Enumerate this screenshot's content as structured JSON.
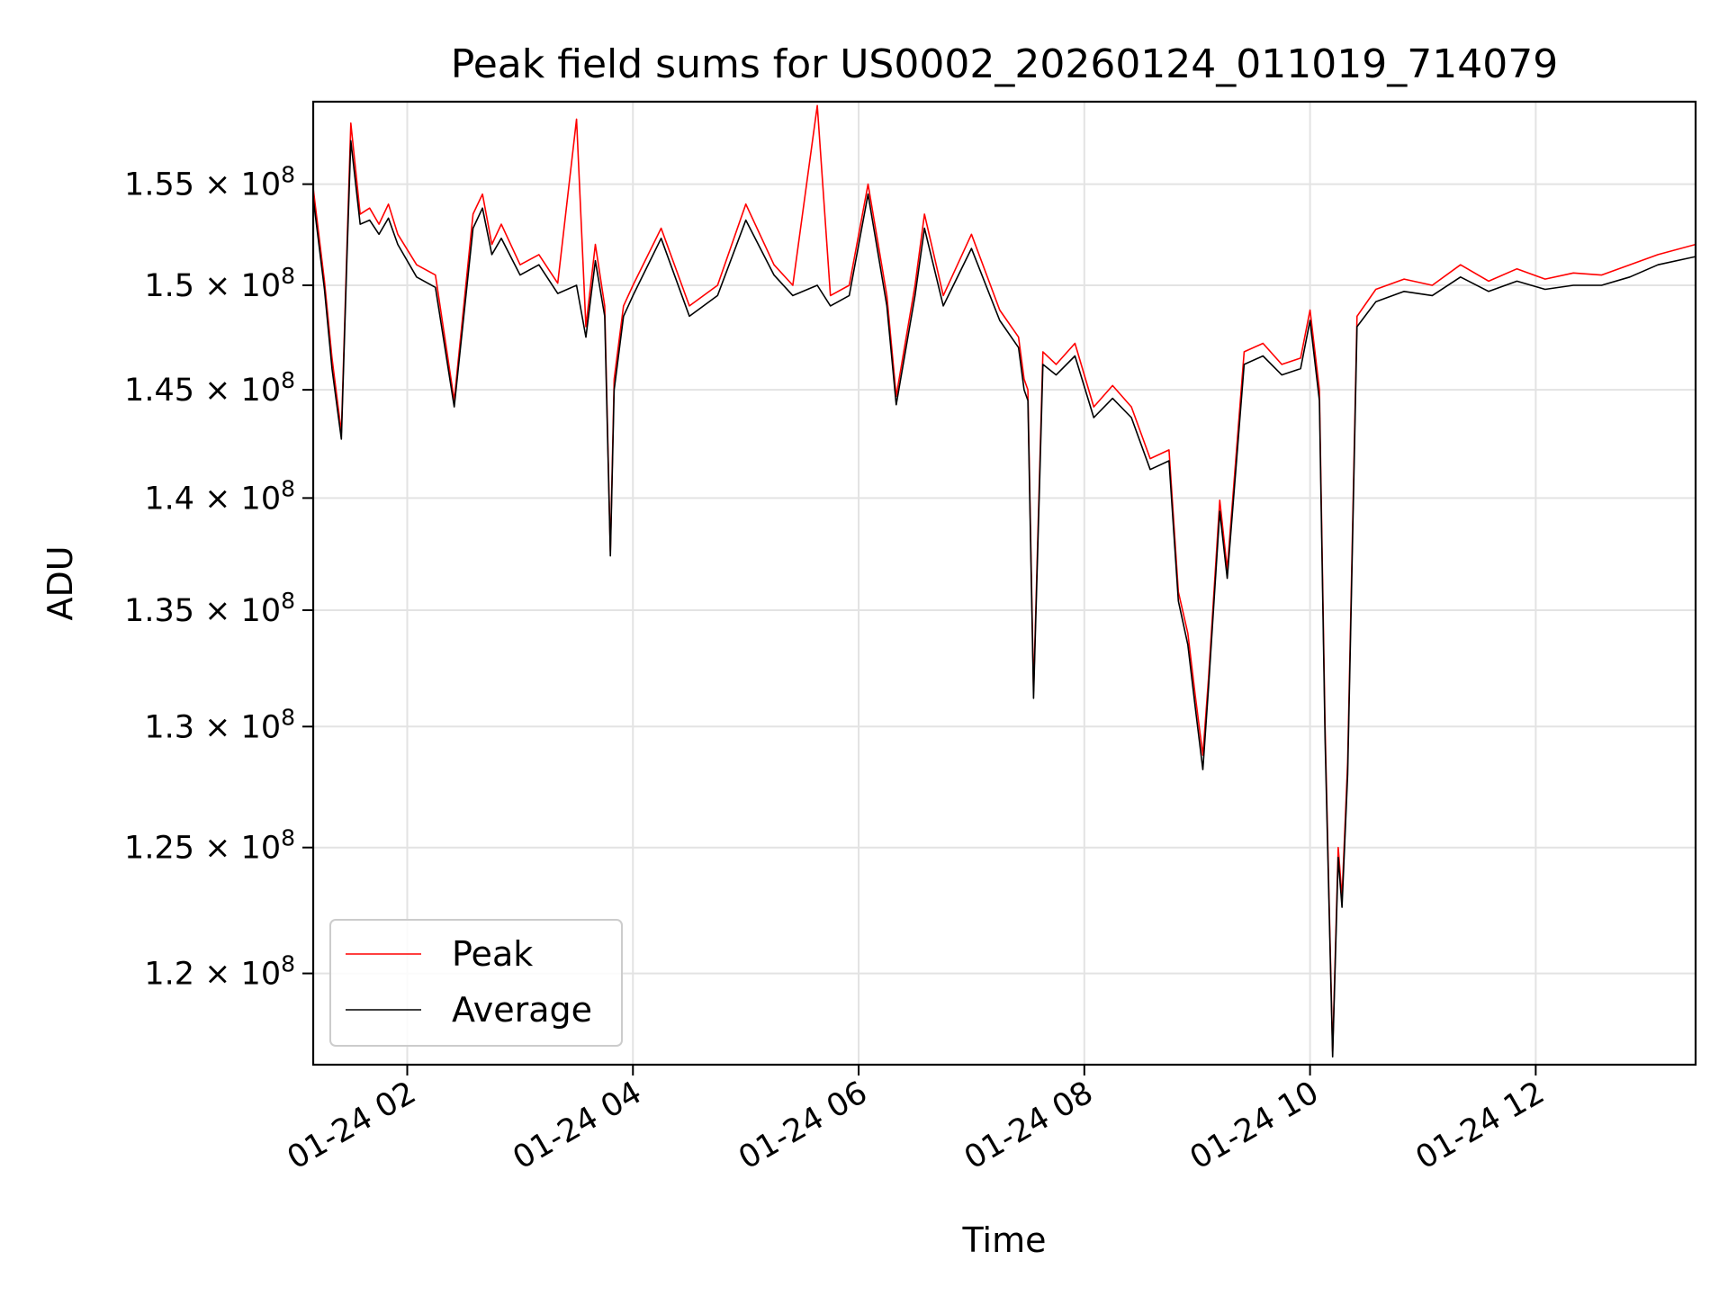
{
  "chart_data": {
    "type": "line",
    "title": "Peak field sums for US0002_20260124_011019_714079",
    "xlabel": "Time",
    "ylabel": "ADU",
    "x_type": "datetime",
    "xlim": [
      "2026-01-24 01:10",
      "2026-01-24 13:25"
    ],
    "ylim": [
      116500000.0,
      159200000.0
    ],
    "y_scale": "log",
    "grid": true,
    "legend_position": "lower-left",
    "x_ticks": [
      {
        "value": "2026-01-24 02:00",
        "label": "01-24 02"
      },
      {
        "value": "2026-01-24 04:00",
        "label": "01-24 04"
      },
      {
        "value": "2026-01-24 06:00",
        "label": "01-24 06"
      },
      {
        "value": "2026-01-24 08:00",
        "label": "01-24 08"
      },
      {
        "value": "2026-01-24 10:00",
        "label": "01-24 10"
      },
      {
        "value": "2026-01-24 12:00",
        "label": "01-24 12"
      }
    ],
    "y_ticks": [
      {
        "value": 120000000.0,
        "mantissa": "1.2"
      },
      {
        "value": 125000000.0,
        "mantissa": "1.25"
      },
      {
        "value": 130000000.0,
        "mantissa": "1.3"
      },
      {
        "value": 135000000.0,
        "mantissa": "1.35"
      },
      {
        "value": 140000000.0,
        "mantissa": "1.4"
      },
      {
        "value": 145000000.0,
        "mantissa": "1.45"
      },
      {
        "value": 150000000.0,
        "mantissa": "1.5"
      },
      {
        "value": 155000000.0,
        "mantissa": "1.55"
      }
    ],
    "y_tick_suffix": "× 10",
    "y_tick_exponent": "8",
    "series": [
      {
        "name": "Peak",
        "color": "#ff0000",
        "x": [
          "2026-01-24 01:10",
          "2026-01-24 01:16",
          "2026-01-24 01:20",
          "2026-01-24 01:25",
          "2026-01-24 01:28",
          "2026-01-24 01:30",
          "2026-01-24 01:35",
          "2026-01-24 01:40",
          "2026-01-24 01:45",
          "2026-01-24 01:50",
          "2026-01-24 01:55",
          "2026-01-24 02:05",
          "2026-01-24 02:15",
          "2026-01-24 02:25",
          "2026-01-24 02:35",
          "2026-01-24 02:40",
          "2026-01-24 02:45",
          "2026-01-24 02:50",
          "2026-01-24 03:00",
          "2026-01-24 03:10",
          "2026-01-24 03:20",
          "2026-01-24 03:30",
          "2026-01-24 03:35",
          "2026-01-24 03:40",
          "2026-01-24 03:45",
          "2026-01-24 03:48",
          "2026-01-24 03:50",
          "2026-01-24 03:55",
          "2026-01-24 04:00",
          "2026-01-24 04:15",
          "2026-01-24 04:30",
          "2026-01-24 04:45",
          "2026-01-24 05:00",
          "2026-01-24 05:15",
          "2026-01-24 05:25",
          "2026-01-24 05:38",
          "2026-01-24 05:45",
          "2026-01-24 05:55",
          "2026-01-24 06:05",
          "2026-01-24 06:15",
          "2026-01-24 06:20",
          "2026-01-24 06:30",
          "2026-01-24 06:35",
          "2026-01-24 06:45",
          "2026-01-24 07:00",
          "2026-01-24 07:15",
          "2026-01-24 07:25",
          "2026-01-24 07:28",
          "2026-01-24 07:30",
          "2026-01-24 07:33",
          "2026-01-24 07:38",
          "2026-01-24 07:45",
          "2026-01-24 07:55",
          "2026-01-24 08:05",
          "2026-01-24 08:15",
          "2026-01-24 08:25",
          "2026-01-24 08:35",
          "2026-01-24 08:45",
          "2026-01-24 08:50",
          "2026-01-24 08:55",
          "2026-01-24 08:59",
          "2026-01-24 09:03",
          "2026-01-24 09:06",
          "2026-01-24 09:12",
          "2026-01-24 09:16",
          "2026-01-24 09:25",
          "2026-01-24 09:35",
          "2026-01-24 09:45",
          "2026-01-24 09:55",
          "2026-01-24 10:00",
          "2026-01-24 10:05",
          "2026-01-24 10:08",
          "2026-01-24 10:12",
          "2026-01-24 10:15",
          "2026-01-24 10:17",
          "2026-01-24 10:20",
          "2026-01-24 10:25",
          "2026-01-24 10:35",
          "2026-01-24 10:50",
          "2026-01-24 11:05",
          "2026-01-24 11:20",
          "2026-01-24 11:35",
          "2026-01-24 11:50",
          "2026-01-24 12:05",
          "2026-01-24 12:20",
          "2026-01-24 12:35",
          "2026-01-24 12:50",
          "2026-01-24 13:05",
          "2026-01-24 13:25"
        ],
        "values": [
          154800000.0,
          150200000.0,
          146500000.0,
          143000000.0,
          152000000.0,
          158100000.0,
          153500000.0,
          153800000.0,
          153000000.0,
          154000000.0,
          152500000.0,
          151000000.0,
          150500000.0,
          144500000.0,
          153500000.0,
          154500000.0,
          152000000.0,
          153000000.0,
          151000000.0,
          151500000.0,
          150100000.0,
          158300000.0,
          148000000.0,
          152000000.0,
          149000000.0,
          137600000.0,
          145500000.0,
          149000000.0,
          150000000.0,
          152800000.0,
          149000000.0,
          150000000.0,
          154000000.0,
          151000000.0,
          150000000.0,
          159000000.0,
          149500000.0,
          150000000.0,
          155000000.0,
          149500000.0,
          144700000.0,
          150000000.0,
          153500000.0,
          149500000.0,
          152500000.0,
          148800000.0,
          147500000.0,
          145500000.0,
          145000000.0,
          131500000.0,
          146800000.0,
          146200000.0,
          147200000.0,
          144200000.0,
          145200000.0,
          144200000.0,
          141800000.0,
          142200000.0,
          135800000.0,
          134000000.0,
          131300000.0,
          128800000.0,
          132000000.0,
          139900000.0,
          136800000.0,
          146800000.0,
          147200000.0,
          146200000.0,
          146500000.0,
          148800000.0,
          145000000.0,
          130000000.0,
          117000000.0,
          125000000.0,
          123000000.0,
          128500000.0,
          148500000.0,
          149800000.0,
          150300000.0,
          150000000.0,
          151000000.0,
          150200000.0,
          150800000.0,
          150300000.0,
          150600000.0,
          150500000.0,
          151000000.0,
          151500000.0,
          152000000.0
        ]
      },
      {
        "name": "Average",
        "color": "#000000",
        "x": [
          "2026-01-24 01:10",
          "2026-01-24 01:16",
          "2026-01-24 01:20",
          "2026-01-24 01:25",
          "2026-01-24 01:28",
          "2026-01-24 01:30",
          "2026-01-24 01:35",
          "2026-01-24 01:40",
          "2026-01-24 01:45",
          "2026-01-24 01:50",
          "2026-01-24 01:55",
          "2026-01-24 02:05",
          "2026-01-24 02:15",
          "2026-01-24 02:25",
          "2026-01-24 02:35",
          "2026-01-24 02:40",
          "2026-01-24 02:45",
          "2026-01-24 02:50",
          "2026-01-24 03:00",
          "2026-01-24 03:10",
          "2026-01-24 03:20",
          "2026-01-24 03:30",
          "2026-01-24 03:35",
          "2026-01-24 03:40",
          "2026-01-24 03:45",
          "2026-01-24 03:48",
          "2026-01-24 03:50",
          "2026-01-24 03:55",
          "2026-01-24 04:00",
          "2026-01-24 04:15",
          "2026-01-24 04:30",
          "2026-01-24 04:45",
          "2026-01-24 05:00",
          "2026-01-24 05:15",
          "2026-01-24 05:25",
          "2026-01-24 05:38",
          "2026-01-24 05:45",
          "2026-01-24 05:55",
          "2026-01-24 06:05",
          "2026-01-24 06:15",
          "2026-01-24 06:20",
          "2026-01-24 06:30",
          "2026-01-24 06:35",
          "2026-01-24 06:45",
          "2026-01-24 07:00",
          "2026-01-24 07:15",
          "2026-01-24 07:25",
          "2026-01-24 07:28",
          "2026-01-24 07:30",
          "2026-01-24 07:33",
          "2026-01-24 07:38",
          "2026-01-24 07:45",
          "2026-01-24 07:55",
          "2026-01-24 08:05",
          "2026-01-24 08:15",
          "2026-01-24 08:25",
          "2026-01-24 08:35",
          "2026-01-24 08:45",
          "2026-01-24 08:50",
          "2026-01-24 08:55",
          "2026-01-24 08:59",
          "2026-01-24 09:03",
          "2026-01-24 09:06",
          "2026-01-24 09:12",
          "2026-01-24 09:16",
          "2026-01-24 09:25",
          "2026-01-24 09:35",
          "2026-01-24 09:45",
          "2026-01-24 09:55",
          "2026-01-24 10:00",
          "2026-01-24 10:05",
          "2026-01-24 10:08",
          "2026-01-24 10:12",
          "2026-01-24 10:15",
          "2026-01-24 10:17",
          "2026-01-24 10:20",
          "2026-01-24 10:25",
          "2026-01-24 10:35",
          "2026-01-24 10:50",
          "2026-01-24 11:05",
          "2026-01-24 11:20",
          "2026-01-24 11:35",
          "2026-01-24 11:50",
          "2026-01-24 12:05",
          "2026-01-24 12:20",
          "2026-01-24 12:35",
          "2026-01-24 12:50",
          "2026-01-24 13:05",
          "2026-01-24 13:25"
        ],
        "values": [
          154300000.0,
          149800000.0,
          146000000.0,
          142700000.0,
          151500000.0,
          157200000.0,
          153000000.0,
          153200000.0,
          152500000.0,
          153300000.0,
          152000000.0,
          150400000.0,
          149900000.0,
          144200000.0,
          152800000.0,
          153800000.0,
          151500000.0,
          152300000.0,
          150500000.0,
          151000000.0,
          149600000.0,
          150000000.0,
          147500000.0,
          151200000.0,
          148500000.0,
          137400000.0,
          145000000.0,
          148500000.0,
          149500000.0,
          152300000.0,
          148500000.0,
          149500000.0,
          153200000.0,
          150500000.0,
          149500000.0,
          150000000.0,
          149000000.0,
          149500000.0,
          154500000.0,
          149000000.0,
          144300000.0,
          149500000.0,
          152800000.0,
          149000000.0,
          151800000.0,
          148300000.0,
          147000000.0,
          145000000.0,
          144500000.0,
          131200000.0,
          146200000.0,
          145700000.0,
          146600000.0,
          143700000.0,
          144600000.0,
          143700000.0,
          141300000.0,
          141700000.0,
          135400000.0,
          133500000.0,
          130800000.0,
          128200000.0,
          131600000.0,
          139400000.0,
          136400000.0,
          146200000.0,
          146600000.0,
          145700000.0,
          146000000.0,
          148300000.0,
          144500000.0,
          129500000.0,
          116800000.0,
          124600000.0,
          122600000.0,
          128000000.0,
          148000000.0,
          149200000.0,
          149700000.0,
          149500000.0,
          150400000.0,
          149700000.0,
          150200000.0,
          149800000.0,
          150000000.0,
          150000000.0,
          150400000.0,
          151000000.0,
          151400000.0
        ]
      }
    ]
  }
}
